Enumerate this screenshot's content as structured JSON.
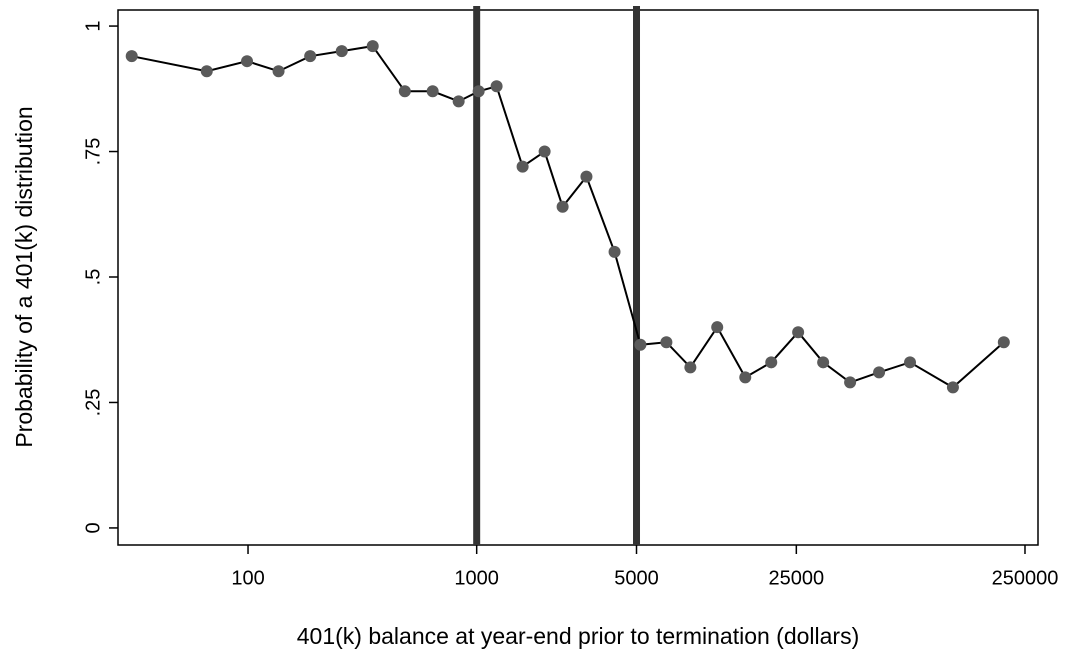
{
  "chart_data": {
    "type": "line",
    "xlabel": "401(k) balance at year-end prior to termination (dollars)",
    "ylabel": "Probability of a 401(k) distribution",
    "x": [
      31,
      66,
      99,
      136,
      187,
      257,
      351,
      485,
      642,
      834,
      1020,
      1222,
      1588,
      1982,
      2376,
      3020,
      4008,
      5200,
      6756,
      8600,
      11270,
      14950,
      19420,
      25460,
      32750,
      42960,
      57510,
      78540,
      121000,
      202000
    ],
    "series": [
      {
        "color": "#5a5a5a",
        "values": [
          0.94,
          0.91,
          0.93,
          0.91,
          0.94,
          0.95,
          0.96,
          0.87,
          0.87,
          0.85,
          0.87,
          0.88,
          0.72,
          0.75,
          0.64,
          0.7,
          0.55,
          0.365,
          0.37,
          0.32,
          0.4,
          0.3,
          0.33,
          0.39,
          0.33,
          0.29,
          0.31,
          0.33,
          0.28,
          0.37
        ]
      }
    ],
    "xscale": "log",
    "xlim": [
      27,
      285000
    ],
    "xticks": [
      100,
      1000,
      5000,
      25000,
      250000
    ],
    "ylim": [
      -0.034,
      1.032
    ],
    "yticks": [
      0,
      {
        "value": 0.25,
        "label": ".25"
      },
      {
        "value": 0.5,
        "label": ".5"
      },
      {
        "value": 0.75,
        "label": ".75"
      },
      1
    ],
    "reference_lines": [
      1000,
      5000
    ],
    "reference_color": "#333333"
  }
}
